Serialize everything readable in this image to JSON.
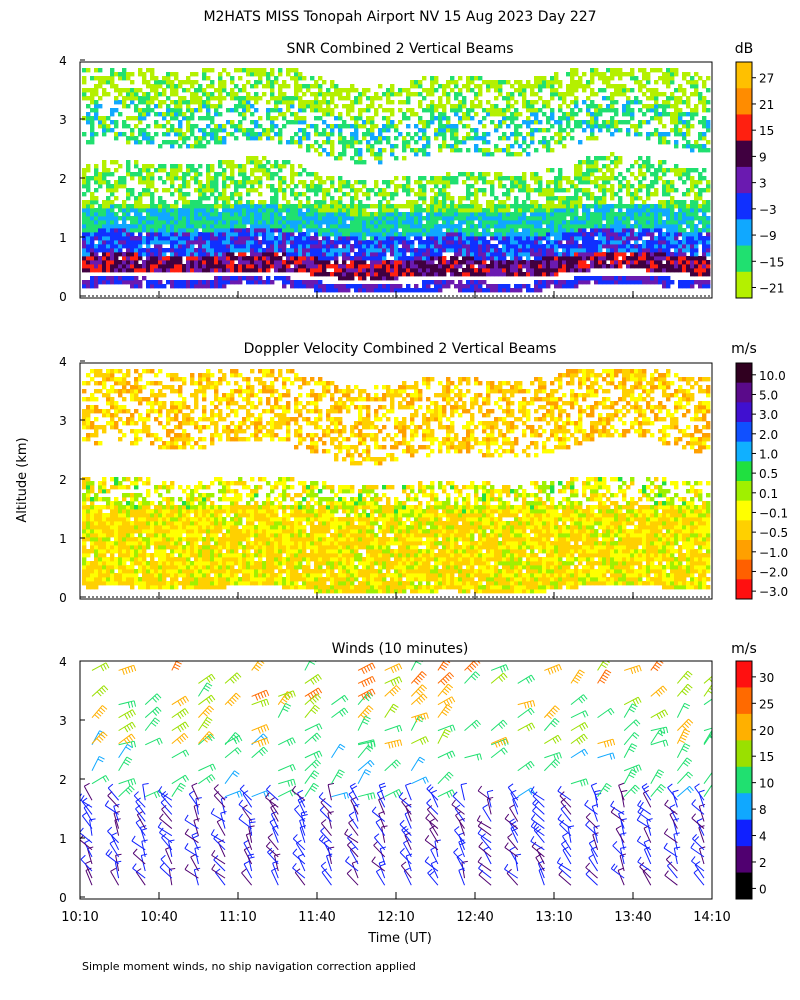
{
  "figure": {
    "title": "M2HATS MISS Tonopah Airport NV  15 Aug 2023 Day 227",
    "ylabel": "Altitude (km)",
    "xlabel": "Time (UT)",
    "x_ticks": [
      "10:10",
      "10:40",
      "11:10",
      "11:40",
      "12:10",
      "12:40",
      "13:10",
      "13:40",
      "14:10"
    ],
    "y_ticks": [
      "0",
      "1",
      "2",
      "3",
      "4"
    ],
    "footnote": "Simple moment winds, no ship navigation correction applied"
  },
  "panels": [
    {
      "title": "SNR Combined 2 Vertical Beams",
      "unit": "dB",
      "colorbar_labels": [
        "27",
        "21",
        "15",
        "9",
        "3",
        "−3",
        "−9",
        "−15",
        "−21"
      ],
      "colorbar_colors": [
        "#ffc000",
        "#ff8c00",
        "#ff2010",
        "#400040",
        "#6a1ab0",
        "#1030ff",
        "#10a8ff",
        "#20e070",
        "#b4f000"
      ]
    },
    {
      "title": "Doppler Velocity Combined 2 Vertical Beams",
      "unit": "m/s",
      "colorbar_labels": [
        "10.0",
        "5.0",
        "3.0",
        "2.0",
        "1.0",
        "0.5",
        "0.1",
        "−0.1",
        "−0.5",
        "−1.0",
        "−2.0",
        "−3.0"
      ],
      "colorbar_colors": [
        "#300020",
        "#5a0a8a",
        "#4010d0",
        "#1050ff",
        "#10b0ff",
        "#20e040",
        "#a0f000",
        "#ffff00",
        "#ffd000",
        "#ffa000",
        "#ff6000",
        "#ff1010"
      ]
    },
    {
      "title": "Winds (10 minutes)",
      "unit": "m/s",
      "colorbar_labels": [
        "30",
        "25",
        "20",
        "15",
        "10",
        "8",
        "4",
        "2",
        "0"
      ],
      "colorbar_colors": [
        "#ff1010",
        "#ff6a00",
        "#ffb000",
        "#9ae000",
        "#20e070",
        "#10a8ff",
        "#1020ff",
        "#500070",
        "#000000"
      ]
    }
  ],
  "chart_data": [
    {
      "type": "heatmap",
      "title": "SNR Combined 2 Vertical Beams",
      "unit": "dB",
      "x_range": [
        "10:10",
        "14:10"
      ],
      "ylim": [
        0,
        4
      ],
      "layers": [
        {
          "alt_km": [
            0.15,
            0.3
          ],
          "snr_db": 0
        },
        {
          "alt_km": [
            0.4,
            0.7
          ],
          "snr_db": 9
        },
        {
          "alt_km": [
            0.7,
            1.1
          ],
          "snr_db": -3
        },
        {
          "alt_km": [
            1.1,
            1.5
          ],
          "snr_db": -12
        },
        {
          "alt_km": [
            1.5,
            2.2
          ],
          "snr_db": -18
        },
        {
          "alt_km": [
            2.5,
            3.2
          ],
          "snr_db": -15
        },
        {
          "alt_km": [
            3.2,
            3.8
          ],
          "snr_db": -21
        }
      ]
    },
    {
      "type": "heatmap",
      "title": "Doppler Velocity Combined 2 Vertical Beams",
      "unit": "m/s",
      "x_range": [
        "10:10",
        "14:10"
      ],
      "ylim": [
        0,
        4
      ],
      "layers": [
        {
          "alt_km": [
            0.15,
            1.5
          ],
          "velocity_ms": -0.3
        },
        {
          "alt_km": [
            1.5,
            2.0
          ],
          "velocity_ms": -0.1
        },
        {
          "alt_km": [
            2.5,
            3.8
          ],
          "velocity_ms": -0.5
        }
      ]
    },
    {
      "type": "scatter",
      "title": "Winds (10 minutes)",
      "unit": "m/s",
      "x_range": [
        "10:10",
        "14:10"
      ],
      "ylim": [
        0,
        4
      ],
      "profile_times": [
        "10:10",
        "10:20",
        "10:30",
        "10:40",
        "10:50",
        "11:00",
        "11:10",
        "11:20",
        "11:30",
        "11:40",
        "11:50",
        "12:00",
        "12:10",
        "12:20",
        "12:30",
        "12:40",
        "12:50",
        "13:00",
        "13:10",
        "13:20",
        "13:30",
        "13:40",
        "13:50",
        "14:00"
      ],
      "speed_ms_by_alt": [
        {
          "alt_km": [
            0.2,
            1.7
          ],
          "speed": [
            2,
            8
          ]
        },
        {
          "alt_km": [
            1.7,
            2.6
          ],
          "speed": [
            8,
            15
          ]
        },
        {
          "alt_km": [
            2.6,
            3.4
          ],
          "speed": [
            10,
            25
          ]
        },
        {
          "alt_km": [
            3.4,
            3.9
          ],
          "speed": [
            12,
            30
          ]
        }
      ]
    }
  ]
}
